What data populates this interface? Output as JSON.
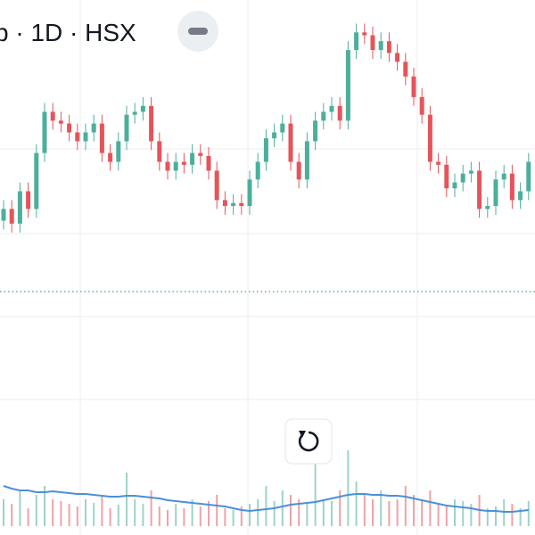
{
  "chart_data": {
    "type": "candlestick",
    "title": "b · 1D · HSX",
    "up_color": "#4caf9b",
    "down_color": "#e5545a",
    "ylim": [
      0,
      100
    ],
    "open": [
      25,
      29,
      24,
      35,
      29,
      48,
      62,
      59,
      58,
      55,
      52,
      55,
      58,
      48,
      45,
      52,
      61,
      62,
      64,
      52,
      45,
      42,
      45,
      44,
      48,
      47,
      42,
      32,
      30,
      31,
      30,
      39,
      45,
      53,
      55,
      58,
      45,
      39,
      52,
      59,
      62,
      64,
      59,
      83,
      89,
      88,
      83,
      86,
      82,
      79,
      74,
      67,
      61,
      45,
      44,
      36,
      38,
      41,
      42,
      29,
      30,
      39,
      41,
      32,
      35
    ],
    "high": [
      32,
      32,
      38,
      38,
      51,
      65,
      65,
      62,
      61,
      58,
      58,
      61,
      61,
      51,
      55,
      64,
      65,
      67,
      67,
      55,
      48,
      48,
      48,
      51,
      51,
      50,
      45,
      35,
      34,
      34,
      42,
      48,
      56,
      58,
      61,
      61,
      48,
      55,
      62,
      65,
      67,
      67,
      86,
      92,
      92,
      91,
      89,
      89,
      85,
      82,
      77,
      70,
      64,
      48,
      47,
      41,
      44,
      45,
      45,
      33,
      42,
      44,
      44,
      38,
      48
    ],
    "low": [
      22,
      21,
      21,
      26,
      26,
      45,
      56,
      55,
      52,
      49,
      49,
      52,
      45,
      42,
      42,
      49,
      58,
      59,
      49,
      42,
      39,
      39,
      41,
      41,
      44,
      39,
      29,
      27,
      27,
      27,
      27,
      36,
      42,
      50,
      52,
      42,
      36,
      36,
      49,
      56,
      59,
      56,
      56,
      80,
      85,
      80,
      80,
      79,
      76,
      71,
      64,
      58,
      42,
      41,
      33,
      33,
      35,
      38,
      26,
      26,
      27,
      36,
      29,
      29,
      32
    ],
    "close": [
      29,
      24,
      35,
      29,
      48,
      62,
      59,
      58,
      55,
      52,
      55,
      58,
      48,
      45,
      52,
      61,
      62,
      64,
      52,
      45,
      42,
      45,
      44,
      48,
      47,
      42,
      32,
      30,
      31,
      30,
      39,
      45,
      53,
      55,
      58,
      45,
      39,
      52,
      59,
      62,
      64,
      59,
      83,
      89,
      88,
      83,
      86,
      82,
      79,
      74,
      67,
      61,
      45,
      44,
      36,
      38,
      41,
      42,
      29,
      30,
      39,
      41,
      32,
      35,
      45
    ],
    "volume": {
      "ylim": [
        0,
        100
      ],
      "line_color": "#4a90d9",
      "values": [
        30,
        25,
        40,
        20,
        35,
        45,
        30,
        28,
        25,
        22,
        30,
        26,
        35,
        20,
        24,
        60,
        30,
        25,
        40,
        22,
        18,
        25,
        20,
        30,
        22,
        28,
        35,
        20,
        18,
        22,
        25,
        30,
        45,
        28,
        40,
        35,
        30,
        25,
        70,
        30,
        28,
        40,
        85,
        50,
        35,
        30,
        40,
        28,
        30,
        45,
        35,
        30,
        40,
        25,
        22,
        30,
        28,
        25,
        35,
        20,
        22,
        30,
        25,
        20,
        28
      ],
      "ma": [
        45,
        42,
        40,
        40,
        38,
        38,
        39,
        38,
        37,
        36,
        36,
        35,
        34,
        33,
        33,
        34,
        34,
        33,
        32,
        31,
        29,
        28,
        27,
        26,
        25,
        24,
        23,
        22,
        20,
        18,
        17,
        18,
        19,
        20,
        22,
        24,
        25,
        26,
        27,
        29,
        31,
        33,
        35,
        36,
        36,
        35,
        35,
        34,
        34,
        33,
        31,
        29,
        27,
        25,
        23,
        22,
        21,
        20,
        18,
        17,
        17,
        16,
        16,
        17,
        18
      ]
    }
  }
}
